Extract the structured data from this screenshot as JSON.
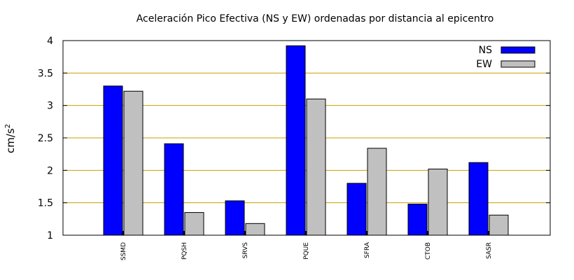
{
  "chart_data": {
    "type": "bar",
    "title": "Aceleración Pico Efectiva (NS y EW) ordenadas por distancia al epicentro",
    "ylabel": "cm/s",
    "ylabel_sup": "2",
    "xlabel": "",
    "categories": [
      "SSMD",
      "PQSH",
      "SRVS",
      "PQUE",
      "SFRA",
      "CTOB",
      "SASR"
    ],
    "series": [
      {
        "name": "NS",
        "color": "#0000ff",
        "values": [
          3.3,
          2.41,
          1.53,
          3.92,
          1.8,
          1.48,
          2.12
        ]
      },
      {
        "name": "EW",
        "color": "#c0c0c0",
        "values": [
          3.22,
          1.35,
          1.18,
          3.1,
          2.34,
          2.02,
          1.31
        ]
      }
    ],
    "ylim": [
      1,
      4
    ],
    "yticks": [
      "1",
      "1.5",
      "2",
      "2.5",
      "3",
      "3.5",
      "4"
    ],
    "grid": "horizontal",
    "grid_color": "#c8a000",
    "legend_position": "top-right"
  }
}
